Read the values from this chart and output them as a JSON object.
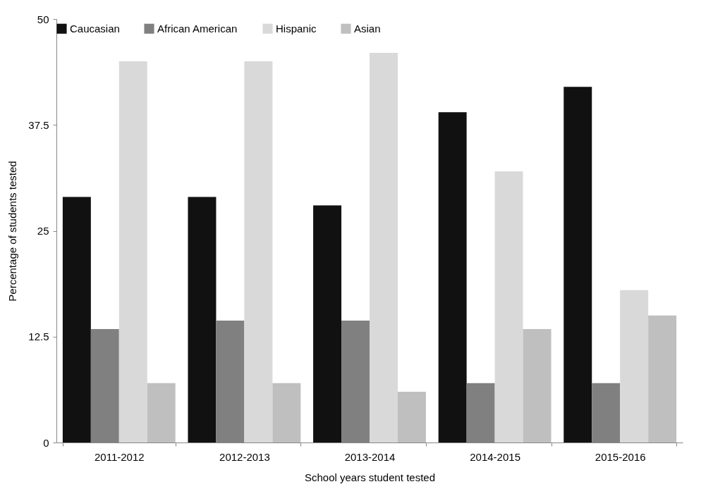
{
  "chart_data": {
    "type": "bar",
    "xlabel": "School years student tested",
    "ylabel": "Percentage of students tested",
    "categories": [
      "2011-2012",
      "2012-2013",
      "2013-2014",
      "2014-2015",
      "2015-2016"
    ],
    "series": [
      {
        "name": "Caucasian",
        "color": "#111111",
        "values": [
          29,
          29,
          28,
          39,
          42
        ]
      },
      {
        "name": "African American",
        "color": "#808080",
        "values": [
          13.4,
          14.4,
          14.4,
          7,
          7
        ]
      },
      {
        "name": "Hispanic",
        "color": "#d9d9d9",
        "values": [
          45,
          45,
          46,
          32,
          18
        ]
      },
      {
        "name": "Asian",
        "color": "#bfbfbf",
        "values": [
          7,
          7,
          6,
          13.4,
          15
        ]
      }
    ],
    "ylim": [
      0,
      50
    ],
    "yticks": [
      0,
      12.5,
      25,
      37.5,
      50
    ],
    "grid": false,
    "legend": "top"
  }
}
